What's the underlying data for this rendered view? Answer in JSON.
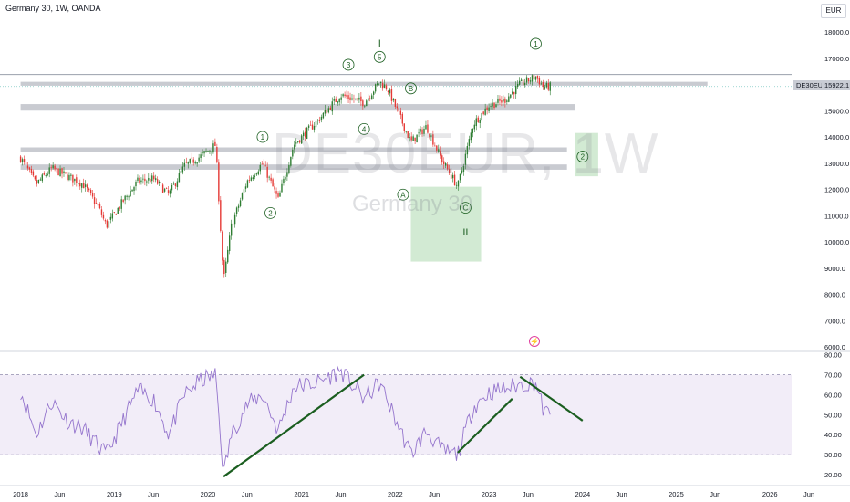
{
  "header": {
    "title": "Germany 30, 1W, OANDA"
  },
  "currency_button": "EUR",
  "watermark": {
    "symbol": "DE30EUR, 1W",
    "name": "Germany 30"
  },
  "last_price": {
    "ticker": "DE30EUR",
    "value": "15922.1"
  },
  "icons": {
    "event": "lightning-event-icon"
  },
  "chart_data": [
    {
      "type": "candlestick",
      "title": "Germany 30, 1W, OANDA",
      "ylim": [
        5800,
        18500
      ],
      "y_ticks": [
        "18000.0",
        "17000.0",
        "16000.0",
        "15000.0",
        "14000.0",
        "13000.0",
        "12000.0",
        "11000.0",
        "10000.0",
        "9000.0",
        "8000.0",
        "7000.0",
        "6000.0"
      ],
      "x_ticks": [
        "2018",
        "Jun",
        "2019",
        "Jun",
        "2020",
        "Jun",
        "2021",
        "Jun",
        "2022",
        "Jun",
        "2023",
        "Jun",
        "2024",
        "Jun",
        "2025",
        "Jun",
        "2026",
        "Jun"
      ],
      "close_path": [
        [
          "2018-01",
          13200
        ],
        [
          "2018-03",
          12200
        ],
        [
          "2018-05",
          12800
        ],
        [
          "2018-07",
          12500
        ],
        [
          "2018-09",
          12200
        ],
        [
          "2018-11",
          11300
        ],
        [
          "2018-12",
          10600
        ],
        [
          "2019-02",
          11500
        ],
        [
          "2019-04",
          12300
        ],
        [
          "2019-06",
          12400
        ],
        [
          "2019-08",
          11800
        ],
        [
          "2019-10",
          12900
        ],
        [
          "2019-12",
          13250
        ],
        [
          "2020-02",
          13700
        ],
        [
          "2020-03",
          8500
        ],
        [
          "2020-04",
          10600
        ],
        [
          "2020-06",
          12300
        ],
        [
          "2020-08",
          13000
        ],
        [
          "2020-10",
          11600
        ],
        [
          "2020-12",
          13700
        ],
        [
          "2021-03",
          14600
        ],
        [
          "2021-06",
          15600
        ],
        [
          "2021-09",
          15300
        ],
        [
          "2021-11",
          16100
        ],
        [
          "2021-12",
          15850
        ],
        [
          "2022-03",
          13800
        ],
        [
          "2022-05",
          14400
        ],
        [
          "2022-07",
          13100
        ],
        [
          "2022-09",
          12100
        ],
        [
          "2022-11",
          14500
        ],
        [
          "2023-01",
          15200
        ],
        [
          "2023-03",
          15400
        ],
        [
          "2023-05",
          16000
        ],
        [
          "2023-07",
          16300
        ],
        [
          "2023-08",
          15900
        ],
        [
          "2023-09",
          15922
        ]
      ],
      "levels": [
        {
          "kind": "band",
          "y": [
            15950,
            16100
          ],
          "x": [
            "2018-01",
            "2025-05"
          ]
        },
        {
          "kind": "band",
          "y": [
            15000,
            15250
          ],
          "x": [
            "2018-01",
            "2023-12"
          ]
        },
        {
          "kind": "band",
          "y": [
            13440,
            13600
          ],
          "x": [
            "2018-01",
            "2023-11"
          ]
        },
        {
          "kind": "band",
          "y": [
            12750,
            12950
          ],
          "x": [
            "2018-01",
            "2023-11"
          ]
        },
        {
          "kind": "line",
          "y": 16380
        }
      ],
      "zones": [
        {
          "x": [
            "2022-03",
            "2022-12"
          ],
          "y": [
            9250,
            12100
          ],
          "color": "#a5d6a7"
        },
        {
          "x": [
            "2023-12",
            "2024-03"
          ],
          "y": [
            12500,
            14150
          ],
          "color": "#a5d6a7"
        }
      ],
      "wave_labels": [
        {
          "text": "I",
          "x": "2021-11",
          "y": 17550,
          "circled": false
        },
        {
          "text": "1",
          "x": "2023-07",
          "y": 17550,
          "circled": true
        },
        {
          "text": "3",
          "x": "2021-07",
          "y": 16750,
          "circled": true
        },
        {
          "text": "5",
          "x": "2021-11",
          "y": 17050,
          "circled": true
        },
        {
          "text": "B",
          "x": "2022-03",
          "y": 15850,
          "circled": true
        },
        {
          "text": "4",
          "x": "2021-09",
          "y": 14300,
          "circled": true
        },
        {
          "text": "1",
          "x": "2020-08",
          "y": 14000,
          "circled": true
        },
        {
          "text": "2",
          "x": "2020-09",
          "y": 11100,
          "circled": true
        },
        {
          "text": "A",
          "x": "2022-02",
          "y": 11800,
          "circled": true
        },
        {
          "text": "C",
          "x": "2022-10",
          "y": 11300,
          "circled": true
        },
        {
          "text": "II",
          "x": "2022-10",
          "y": 10350,
          "circled": false
        },
        {
          "text": "2",
          "x": "2024-01",
          "y": 13250,
          "circled": true
        }
      ]
    },
    {
      "type": "line",
      "series": [
        {
          "indicator": "rsi",
          "color": "#9575cd"
        }
      ],
      "ylim": [
        17,
        82
      ],
      "y_ticks": [
        "80.00",
        "70.00",
        "60.00",
        "50.00",
        "40.00",
        "30.00",
        "20.00"
      ],
      "band": [
        30,
        70
      ],
      "rsi_path": [
        [
          "2018-01",
          62
        ],
        [
          "2018-03",
          40
        ],
        [
          "2018-05",
          57
        ],
        [
          "2018-07",
          47
        ],
        [
          "2018-09",
          43
        ],
        [
          "2018-11",
          34
        ],
        [
          "2018-12",
          30
        ],
        [
          "2019-02",
          46
        ],
        [
          "2019-04",
          62
        ],
        [
          "2019-06",
          58
        ],
        [
          "2019-08",
          40
        ],
        [
          "2019-10",
          60
        ],
        [
          "2019-12",
          67
        ],
        [
          "2020-02",
          70
        ],
        [
          "2020-03",
          20
        ],
        [
          "2020-04",
          40
        ],
        [
          "2020-06",
          55
        ],
        [
          "2020-08",
          60
        ],
        [
          "2020-10",
          42
        ],
        [
          "2020-12",
          64
        ],
        [
          "2021-03",
          66
        ],
        [
          "2021-06",
          72
        ],
        [
          "2021-09",
          58
        ],
        [
          "2021-11",
          66
        ],
        [
          "2021-12",
          57
        ],
        [
          "2022-03",
          30
        ],
        [
          "2022-05",
          42
        ],
        [
          "2022-07",
          32
        ],
        [
          "2022-09",
          30
        ],
        [
          "2022-11",
          54
        ],
        [
          "2023-01",
          61
        ],
        [
          "2023-03",
          63
        ],
        [
          "2023-05",
          65
        ],
        [
          "2023-07",
          66
        ],
        [
          "2023-08",
          52
        ],
        [
          "2023-09",
          49
        ]
      ],
      "trendlines": [
        {
          "from": [
            "2020-03",
            19
          ],
          "to": [
            "2021-09",
            70
          ]
        },
        {
          "from": [
            "2022-09",
            31
          ],
          "to": [
            "2023-04",
            58
          ]
        },
        {
          "from": [
            "2023-05",
            69
          ],
          "to": [
            "2024-01",
            47
          ]
        }
      ]
    }
  ]
}
